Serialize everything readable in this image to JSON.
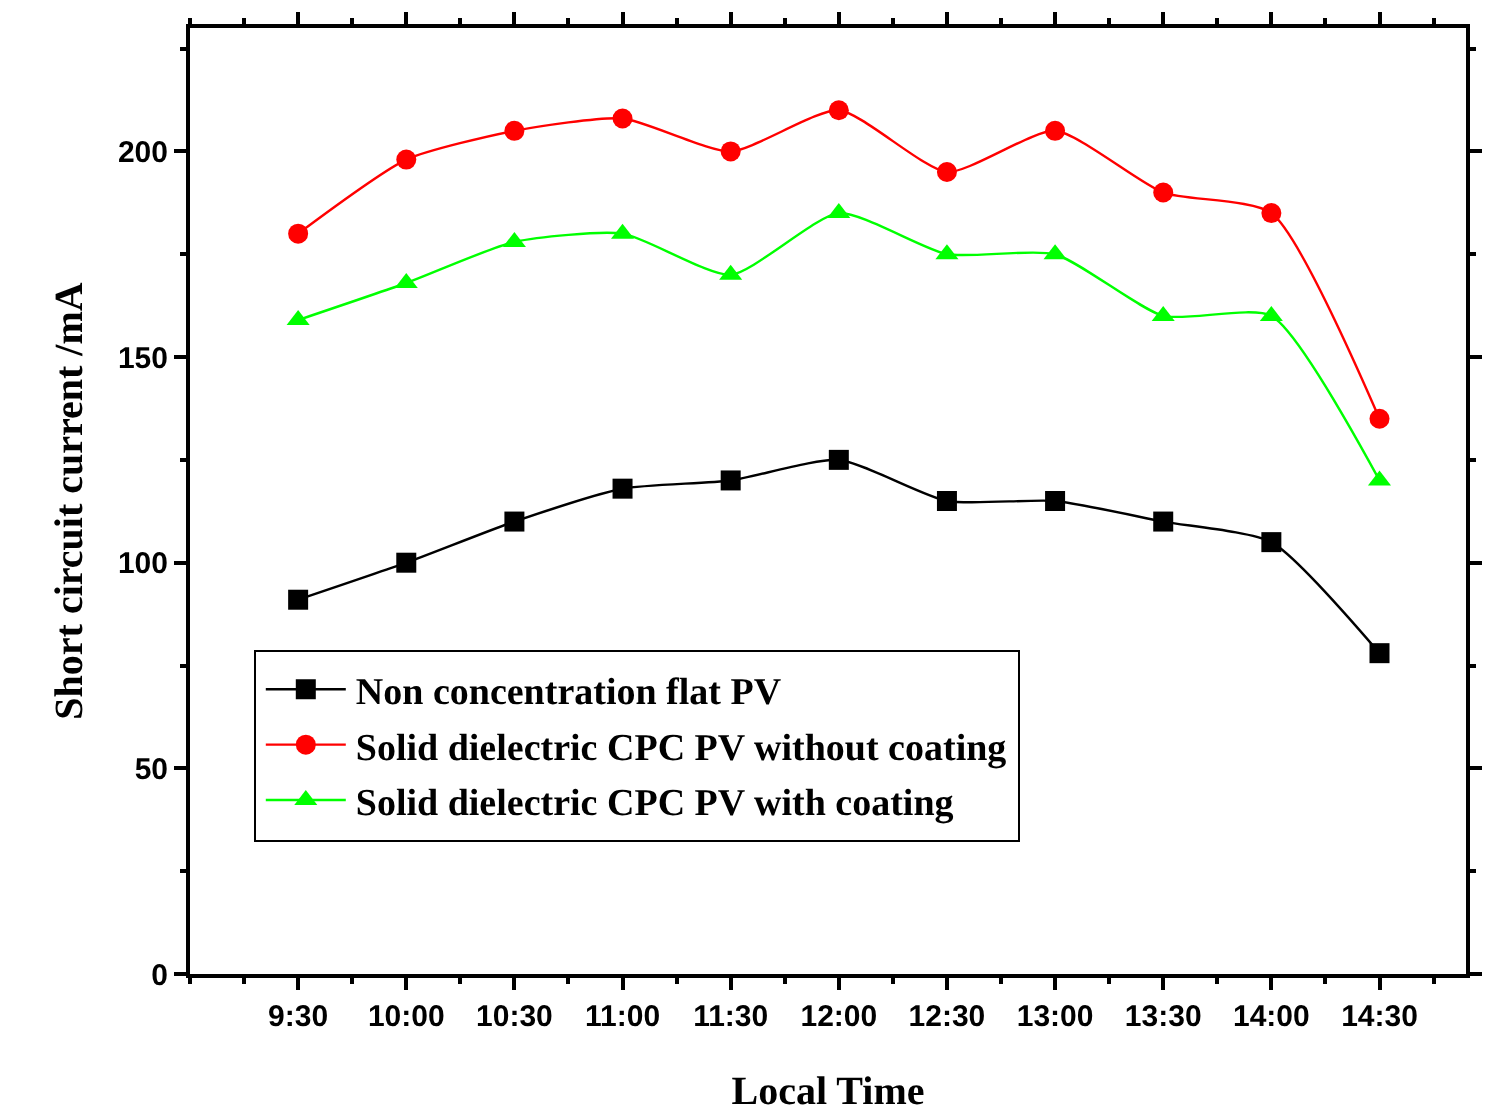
{
  "chart_data": {
    "type": "line",
    "xlabel": "Local Time",
    "ylabel": "Short circuit current /mA",
    "x": [
      9.5,
      10,
      10.5,
      11,
      11.5,
      12,
      12.5,
      13,
      13.5,
      14,
      14.5
    ],
    "xlim": [
      9.0,
      14.9
    ],
    "xticks": [
      {
        "value": 9.5,
        "label": "9:30"
      },
      {
        "value": 10,
        "label": "10:00"
      },
      {
        "value": 10.5,
        "label": "10:30"
      },
      {
        "value": 11,
        "label": "11:00"
      },
      {
        "value": 11.5,
        "label": "11:30"
      },
      {
        "value": 12,
        "label": "12:00"
      },
      {
        "value": 12.5,
        "label": "12:30"
      },
      {
        "value": 13,
        "label": "13:00"
      },
      {
        "value": 13.5,
        "label": "13:30"
      },
      {
        "value": 14,
        "label": "14:00"
      },
      {
        "value": 14.5,
        "label": "14:30"
      }
    ],
    "ylim": [
      0,
      230
    ],
    "yticks": [
      0,
      50,
      100,
      150,
      200
    ],
    "series": [
      {
        "name": "Non concentration flat PV",
        "color": "#000000",
        "marker": "square",
        "values": [
          91,
          100,
          110,
          118,
          120,
          125,
          115,
          115,
          110,
          105,
          78
        ]
      },
      {
        "name": "Solid dielectric CPC PV without coating",
        "color": "#ff0000",
        "marker": "circle",
        "values": [
          180,
          198,
          205,
          208,
          200,
          210,
          195,
          205,
          190,
          185,
          135
        ]
      },
      {
        "name": "Solid dielectric CPC PV with coating",
        "color": "#00ff00",
        "marker": "triangle",
        "values": [
          159,
          168,
          178,
          180,
          170,
          185,
          175,
          175,
          160,
          160,
          120
        ]
      }
    ],
    "legend": "bottom left",
    "line_style": "solid"
  }
}
